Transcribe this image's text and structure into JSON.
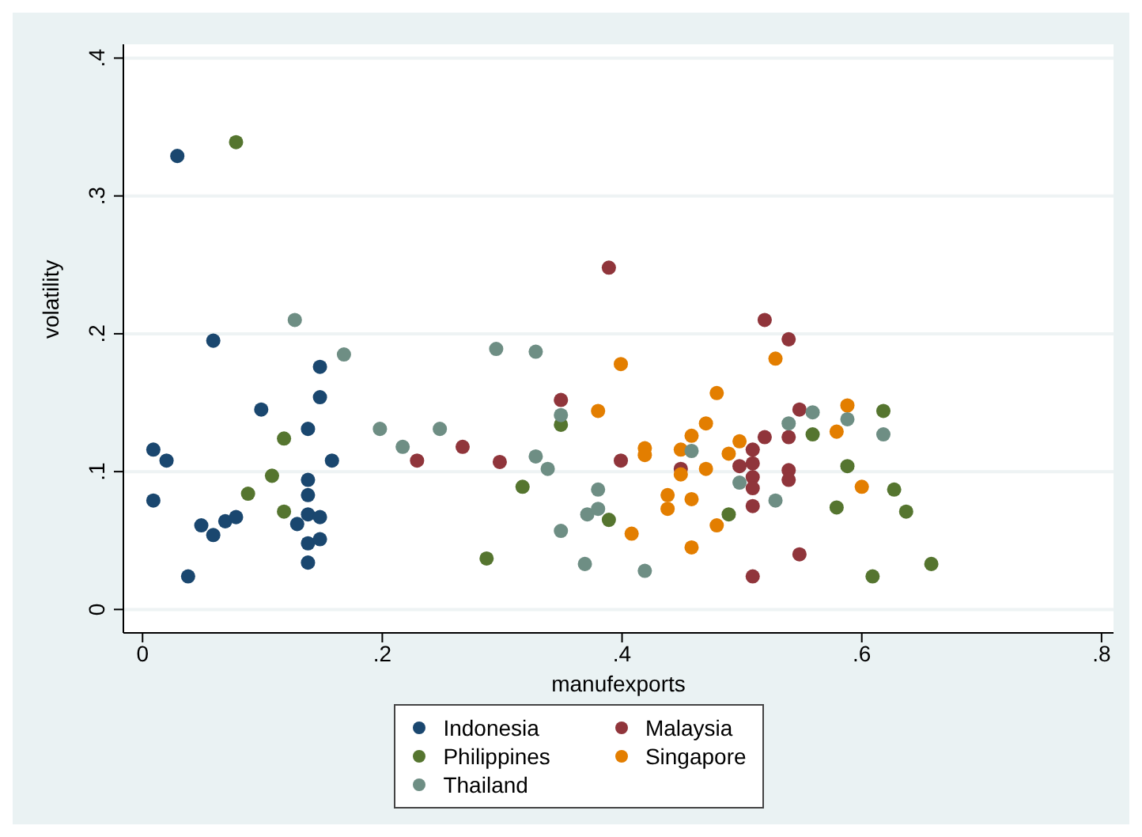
{
  "chart_data": {
    "type": "scatter",
    "xlabel": "manufexports",
    "ylabel": "volatility",
    "xlim": [
      -0.016,
      0.81
    ],
    "ylim": [
      -0.017,
      0.41
    ],
    "xticks": [
      {
        "value": 0,
        "label": "0"
      },
      {
        "value": 0.2,
        "label": ".2"
      },
      {
        "value": 0.4,
        "label": ".4"
      },
      {
        "value": 0.6,
        "label": ".6"
      },
      {
        "value": 0.8,
        "label": ".8"
      }
    ],
    "yticks": [
      {
        "value": 0,
        "label": "0"
      },
      {
        "value": 0.1,
        "label": ".1"
      },
      {
        "value": 0.2,
        "label": ".2"
      },
      {
        "value": 0.3,
        "label": ".3"
      },
      {
        "value": 0.4,
        "label": ".4"
      }
    ],
    "grid": "y",
    "legend": "bottom",
    "marker": "circle",
    "series": [
      {
        "name": "Indonesia",
        "color": "#1a476f",
        "x": [
          0.029,
          0.059,
          0.009,
          0.02,
          0.009,
          0.038,
          0.049,
          0.059,
          0.069,
          0.078,
          0.099,
          0.138,
          0.148,
          0.148,
          0.158,
          0.138,
          0.138,
          0.129,
          0.138,
          0.148,
          0.138,
          0.148,
          0.138
        ],
        "values": [
          0.329,
          0.195,
          0.116,
          0.108,
          0.079,
          0.024,
          0.061,
          0.054,
          0.064,
          0.067,
          0.145,
          0.131,
          0.176,
          0.154,
          0.108,
          0.094,
          0.083,
          0.062,
          0.069,
          0.067,
          0.048,
          0.051,
          0.034
        ]
      },
      {
        "name": "Malaysia",
        "color": "#90353b",
        "x": [
          0.229,
          0.267,
          0.298,
          0.389,
          0.349,
          0.399,
          0.449,
          0.498,
          0.519,
          0.539,
          0.548,
          0.539,
          0.519,
          0.509,
          0.509,
          0.509,
          0.509,
          0.509,
          0.539,
          0.539,
          0.548,
          0.509
        ],
        "values": [
          0.108,
          0.118,
          0.107,
          0.248,
          0.152,
          0.108,
          0.102,
          0.104,
          0.21,
          0.196,
          0.145,
          0.125,
          0.125,
          0.116,
          0.106,
          0.096,
          0.088,
          0.075,
          0.101,
          0.094,
          0.04,
          0.024
        ]
      },
      {
        "name": "Philippines",
        "color": "#55752f",
        "x": [
          0.078,
          0.118,
          0.108,
          0.088,
          0.118,
          0.287,
          0.317,
          0.349,
          0.389,
          0.489,
          0.559,
          0.618,
          0.588,
          0.579,
          0.627,
          0.637,
          0.609,
          0.658
        ],
        "values": [
          0.339,
          0.124,
          0.097,
          0.084,
          0.071,
          0.037,
          0.089,
          0.134,
          0.065,
          0.069,
          0.127,
          0.144,
          0.104,
          0.074,
          0.087,
          0.071,
          0.024,
          0.033
        ]
      },
      {
        "name": "Singapore",
        "color": "#e37e00",
        "x": [
          0.399,
          0.479,
          0.38,
          0.47,
          0.458,
          0.498,
          0.419,
          0.419,
          0.449,
          0.489,
          0.449,
          0.47,
          0.438,
          0.438,
          0.458,
          0.408,
          0.479,
          0.458,
          0.528,
          0.588,
          0.579,
          0.6
        ],
        "values": [
          0.178,
          0.157,
          0.144,
          0.135,
          0.126,
          0.122,
          0.117,
          0.112,
          0.116,
          0.113,
          0.098,
          0.102,
          0.083,
          0.073,
          0.08,
          0.055,
          0.061,
          0.045,
          0.182,
          0.148,
          0.129,
          0.089
        ]
      },
      {
        "name": "Thailand",
        "color": "#6e8e84",
        "x": [
          0.127,
          0.168,
          0.198,
          0.217,
          0.248,
          0.295,
          0.328,
          0.349,
          0.328,
          0.338,
          0.38,
          0.371,
          0.38,
          0.349,
          0.369,
          0.419,
          0.458,
          0.498,
          0.528,
          0.539,
          0.559,
          0.588,
          0.618
        ],
        "values": [
          0.21,
          0.185,
          0.131,
          0.118,
          0.131,
          0.189,
          0.187,
          0.141,
          0.111,
          0.102,
          0.087,
          0.069,
          0.073,
          0.057,
          0.033,
          0.028,
          0.115,
          0.092,
          0.079,
          0.135,
          0.143,
          0.138,
          0.127
        ]
      }
    ]
  }
}
